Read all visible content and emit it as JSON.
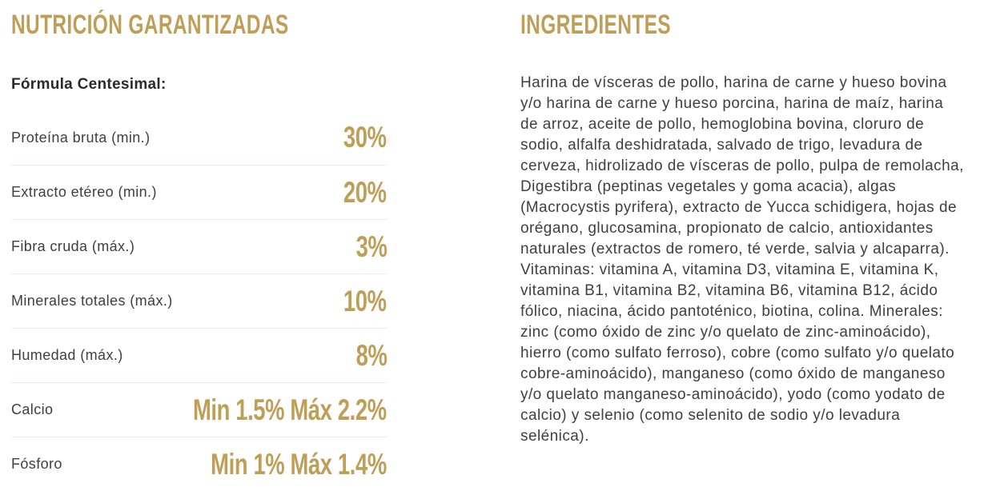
{
  "theme": {
    "gold": "#bf9f57",
    "text": "#3e3e44",
    "subtitle_text": "#2a2a2e",
    "divider": "#f3e8da",
    "background": "#ffffff"
  },
  "left": {
    "title": "NUTRICIÓN GARANTIZADAS",
    "subtitle": "Fórmula Centesimal:",
    "rows": [
      {
        "label": "Proteína bruta (min.)",
        "value": "30%"
      },
      {
        "label": "Extracto etéreo (min.)",
        "value": "20%"
      },
      {
        "label": "Fibra cruda (máx.)",
        "value": "3%"
      },
      {
        "label": "Minerales totales (máx.)",
        "value": "10%"
      },
      {
        "label": "Humedad (máx.)",
        "value": "8%"
      },
      {
        "label": "Calcio",
        "value": "Min 1.5% Máx 2.2%"
      },
      {
        "label": "Fósforo",
        "value": "Min 1% Máx 1.4%"
      }
    ]
  },
  "right": {
    "title": "INGREDIENTES",
    "body": "Harina de vísceras de pollo, harina de carne y hueso bovina y/o harina de carne y hueso porcina, harina de maíz, harina de arroz, aceite de pollo, hemoglobina bovina, cloruro de sodio, alfalfa deshidratada, salvado de trigo, levadura de cerveza, hidrolizado de vísceras de pollo, pulpa de remolacha, Digestibra (peptinas vegetales y goma acacia), algas (Macrocystis pyrifera), extracto de Yucca schidigera, hojas de orégano, glucosamina, propionato de calcio, antioxidantes naturales (extractos de romero, té verde, salvia y alcaparra). Vitaminas: vitamina A, vitamina D3, vitamina E, vitamina K, vitamina B1, vitamina B2, vitamina B6, vitamina B12, ácido fólico, niacina, ácido pantoténico, biotina, colina. Minerales: zinc (como óxido de zinc y/o quelato de zinc-aminoácido), hierro (como sulfato ferroso), cobre (como sulfato y/o quelato cobre-aminoácido), manganeso (como óxido de manganeso y/o quelato manganeso-aminoácido), yodo (como yodato de calcio) y selenio (como selenito de sodio y/o levadura selénica)."
  }
}
